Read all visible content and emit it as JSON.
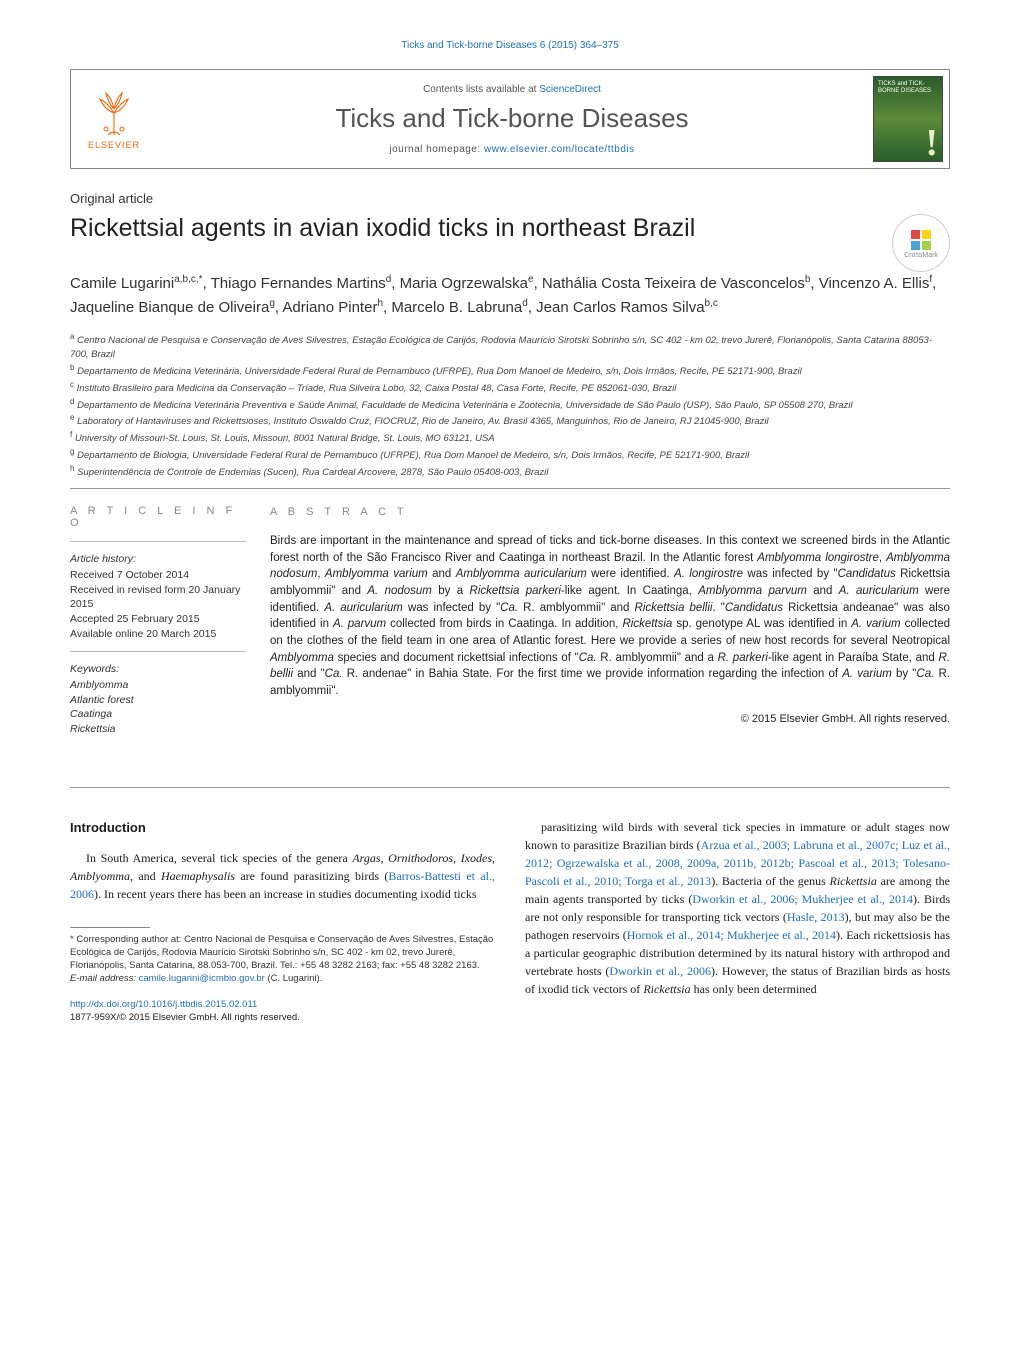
{
  "running_header": "Ticks and Tick-borne Diseases 6 (2015) 364–375",
  "masthead": {
    "publisher": "ELSEVIER",
    "contents_prefix": "Contents lists available at ",
    "contents_link": "ScienceDirect",
    "journal_name": "Ticks and Tick-borne Diseases",
    "homepage_prefix": "journal homepage: ",
    "homepage_link": "www.elsevier.com/locate/ttbdis",
    "cover_title": "TICKS and TICK-BORNE DISEASES"
  },
  "article_type": "Original article",
  "title": "Rickettsial agents in avian ixodid ticks in northeast Brazil",
  "crossmark": "CrossMark",
  "authors_html": "Camile Lugarini<sup>a,b,c,*</sup>, Thiago Fernandes Martins<sup>d</sup>, Maria Ogrzewalska<sup>e</sup>, Nathália Costa Teixeira de Vasconcelos<sup>b</sup>, Vincenzo A. Ellis<sup>f</sup>, Jaqueline Bianque de Oliveira<sup>g</sup>, Adriano Pinter<sup>h</sup>, Marcelo B. Labruna<sup>d</sup>, Jean Carlos Ramos Silva<sup>b,c</sup>",
  "affiliations": [
    "<sup>a</sup> Centro Nacional de Pesquisa e Conservação de Aves Silvestres, Estação Ecológica de Carijós, Rodovia Maurício Sirotski Sobrinho s/n, SC 402 - km 02, trevo Jurerê, Florianópolis, Santa Catarina 88053-700, Brazil",
    "<sup>b</sup> Departamento de Medicina Veterinária, Universidade Federal Rural de Pernambuco (UFRPE), Rua Dom Manoel de Medeiro, s/n, Dois Irmãos, Recife, PE 52171-900, Brazil",
    "<sup>c</sup> Instituto Brasileiro para Medicina da Conservação – Tríade, Rua Silveira Lobo, 32, Caixa Postal 48, Casa Forte, Recife, PE 852061-030, Brazil",
    "<sup>d</sup> Departamento de Medicina Veterinária Preventiva e Saúde Animal, Faculdade de Medicina Veterinária e Zootecnia, Universidade de São Paulo (USP), São Paulo, SP 05508 270, Brazil",
    "<sup>e</sup> Laboratory of Hantaviruses and Rickettsioses, Instituto Oswaldo Cruz, FIOCRUZ, Rio de Janeiro, Av. Brasil 4365, Manguinhos, Rio de Janeiro, RJ 21045-900, Brazil",
    "<sup>f</sup> University of Missouri-St. Louis, St. Louis, Missouri, 8001 Natural Bridge, St. Louis, MO 63121, USA",
    "<sup>g</sup> Departamento de Biologia, Universidade Federal Rural de Pernambuco (UFRPE), Rua Dom Manoel de Medeiro, s/n, Dois Irmãos, Recife, PE 52171-900, Brazil",
    "<sup>h</sup> Superintendência de Controle de Endemias (Sucen), Rua Cardeal Arcovere, 2878, São Paulo 05408-003, Brazil"
  ],
  "article_info": {
    "heading": "a r t i c l e   i n f o",
    "history_label": "Article history:",
    "history": [
      "Received 7 October 2014",
      "Received in revised form 20 January 2015",
      "Accepted 25 February 2015",
      "Available online 20 March 2015"
    ],
    "keywords_label": "Keywords:",
    "keywords": [
      "Amblyomma",
      "Atlantic forest",
      "Caatinga",
      "Rickettsia"
    ]
  },
  "abstract": {
    "heading": "a b s t r a c t",
    "body": "Birds are important in the maintenance and spread of ticks and tick-borne diseases. In this context we screened birds in the Atlantic forest north of the São Francisco River and Caatinga in northeast Brazil. In the Atlantic forest <em>Amblyomma longirostre</em>, <em>Amblyomma nodosum</em>, <em>Amblyomma varium</em> and <em>Amblyomma auricularium</em> were identified. <em>A. longirostre</em> was infected by \"<em>Candidatus</em> Rickettsia amblyommii\" and <em>A. nodosum</em> by a <em>Rickettsia parkeri</em>-like agent. In Caatinga, <em>Amblyomma parvum</em> and <em>A. auricularium</em> were identified. <em>A. auricularium</em> was infected by \"<em>Ca.</em> R. amblyommii\" and <em>Rickettsia bellii</em>. \"<em>Candidatus</em> Rickettsia andeanae\" was also identified in <em>A. parvum</em> collected from birds in Caatinga. In addition, <em>Rickettsia</em> sp. genotype AL was identified in <em>A. varium</em> collected on the clothes of the field team in one area of Atlantic forest. Here we provide a series of new host records for several Neotropical <em>Amblyomma</em> species and document rickettsial infections of \"<em>Ca.</em> R. amblyommii\" and a <em>R. parkeri</em>-like agent in Paraíba State, and <em>R. bellii</em> and \"<em>Ca.</em> R. andenae\" in Bahia State. For the first time we provide information regarding the infection of <em>A. varium</em> by \"<em>Ca.</em> R. amblyommii\".",
    "copyright": "© 2015 Elsevier GmbH. All rights reserved."
  },
  "intro_heading": "Introduction",
  "intro_left": "In South America, several tick species of the genera <em>Argas</em>, <em>Ornithodoros</em>, <em>Ixodes</em>, <em>Amblyomma</em>, and <em>Haemaphysalis</em> are found parasitizing birds (<span class='ref-link'>Barros-Battesti et al., 2006</span>). In recent years there has been an increase in studies documenting ixodid ticks",
  "intro_right": "parasitizing wild birds with several tick species in immature or adult stages now known to parasitize Brazilian birds (<span class='ref-link'>Arzua et al., 2003; Labruna et al., 2007c; Luz et al., 2012; Ogrzewalska et al., 2008, 2009a, 2011b, 2012b; Pascoal et al., 2013; Tolesano-Pascoli et al., 2010; Torga et al., 2013</span>). Bacteria of the genus <em>Rickettsia</em> are among the main agents transported by ticks (<span class='ref-link'>Dworkin et al., 2006; Mukherjee et al., 2014</span>). Birds are not only responsible for transporting tick vectors (<span class='ref-link'>Hasle, 2013</span>), but may also be the pathogen reservoirs (<span class='ref-link'>Hornok et al., 2014; Mukherjee et al., 2014</span>). Each rickettsiosis has a particular geographic distribution determined by its natural history with arthropod and vertebrate hosts (<span class='ref-link'>Dworkin et al., 2006</span>). However, the status of Brazilian birds as hosts of ixodid tick vectors of <em>Rickettsia</em> has only been determined",
  "corresponding": {
    "label": "* Corresponding author at: Centro Nacional de Pesquisa e Conservação de Aves Silvestres, Estação Ecológica de Carijós, Rodovia Maurício Sirotski Sobrinho s/n, SC 402 - km 02, trevo Jurerê, Florianópolis, Santa Catarina, 88.053-700, Brazil. Tel.: +55 48 3282 2163; fax: +55 48 3282 2163.",
    "email_prefix": "E-mail address: ",
    "email": "camile.lugarini@icmbio.gov.br",
    "email_suffix": " (C. Lugarini)."
  },
  "doi": {
    "link": "http://dx.doi.org/10.1016/j.ttbdis.2015.02.011",
    "issn_line": "1877-959X/© 2015 Elsevier GmbH. All rights reserved."
  },
  "colors": {
    "link": "#1d6fb8",
    "publisher": "#ec6707",
    "heading_gray": "#888888",
    "rule": "#999999"
  }
}
